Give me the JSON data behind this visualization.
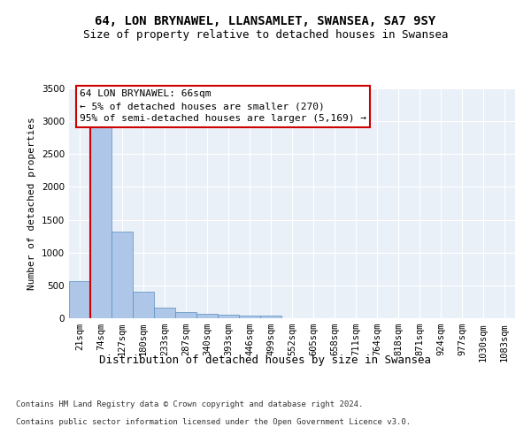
{
  "title_line1": "64, LON BRYNAWEL, LLANSAMLET, SWANSEA, SA7 9SY",
  "title_line2": "Size of property relative to detached houses in Swansea",
  "xlabel": "Distribution of detached houses by size in Swansea",
  "ylabel": "Number of detached properties",
  "categories": [
    "21sqm",
    "74sqm",
    "127sqm",
    "180sqm",
    "233sqm",
    "287sqm",
    "340sqm",
    "393sqm",
    "446sqm",
    "499sqm",
    "552sqm",
    "605sqm",
    "658sqm",
    "711sqm",
    "764sqm",
    "818sqm",
    "871sqm",
    "924sqm",
    "977sqm",
    "1030sqm",
    "1083sqm"
  ],
  "bar_values": [
    570,
    2910,
    1320,
    410,
    155,
    90,
    65,
    55,
    45,
    35,
    0,
    0,
    0,
    0,
    0,
    0,
    0,
    0,
    0,
    0,
    0
  ],
  "bar_color": "#aec6e8",
  "bar_edge_color": "#5a8fc0",
  "highlight_line_color": "#cc0000",
  "annotation_text": "64 LON BRYNAWEL: 66sqm\n← 5% of detached houses are smaller (270)\n95% of semi-detached houses are larger (5,169) →",
  "annotation_box_color": "#ffffff",
  "annotation_box_edge_color": "#cc0000",
  "ylim": [
    0,
    3500
  ],
  "yticks": [
    0,
    500,
    1000,
    1500,
    2000,
    2500,
    3000,
    3500
  ],
  "background_color": "#eaf0f8",
  "grid_color": "#ffffff",
  "footer_line1": "Contains HM Land Registry data © Crown copyright and database right 2024.",
  "footer_line2": "Contains public sector information licensed under the Open Government Licence v3.0.",
  "title_fontsize": 10,
  "subtitle_fontsize": 9,
  "xlabel_fontsize": 9,
  "ylabel_fontsize": 8,
  "tick_fontsize": 7.5,
  "annotation_fontsize": 8,
  "footer_fontsize": 6.5
}
